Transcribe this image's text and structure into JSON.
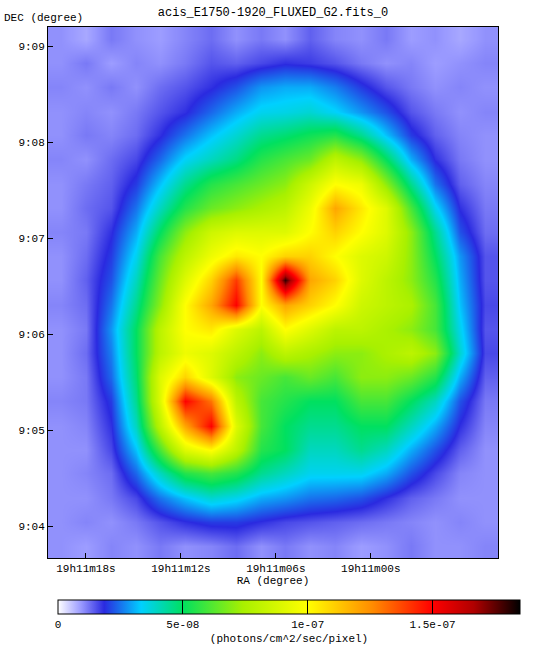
{
  "chart_data": {
    "type": "heatmap",
    "title": "acis_E1750-1920_FLUXED_G2.fits_0",
    "x_label": "RA (degree)",
    "y_label": "DEC (degree)",
    "xlim": [
      287.835,
      287.7165
    ],
    "ylim": [
      9.0612,
      9.1534
    ],
    "xticks": [
      {
        "value": 287.825,
        "label": "19h11m18s"
      },
      {
        "value": 287.8,
        "label": "19h11m12s"
      },
      {
        "value": 287.775,
        "label": "19h11m06s"
      },
      {
        "value": 287.75,
        "label": "19h11m00s"
      }
    ],
    "yticks": [
      {
        "value": 9.066667,
        "label": "9:04"
      },
      {
        "value": 9.083333,
        "label": "9:05"
      },
      {
        "value": 9.1,
        "label": "9:06"
      },
      {
        "value": 9.116667,
        "label": "9:07"
      },
      {
        "value": 9.133333,
        "label": "9:08"
      },
      {
        "value": 9.15,
        "label": "9:09"
      }
    ],
    "x": [
      287.8317,
      287.8251,
      287.8185,
      287.8119,
      287.8054,
      287.7988,
      287.7922,
      287.7856,
      287.779,
      287.7725,
      287.7659,
      287.7593,
      287.7527,
      287.7461,
      287.7395,
      287.733,
      287.7264,
      287.7198
    ],
    "y": [
      9.1513,
      9.1471,
      9.1429,
      9.1387,
      9.1346,
      9.1304,
      9.1262,
      9.122,
      9.1178,
      9.1136,
      9.1094,
      9.1052,
      9.101,
      9.0968,
      9.0926,
      9.0884,
      9.0842,
      9.08,
      9.0759,
      9.0717,
      9.0675,
      9.0633
    ],
    "z": [
      [
        1e-08,
        8e-09,
        1.2e-08,
        1e-08,
        9e-09,
        1.1e-08,
        1.3e-08,
        1e-08,
        1.2e-08,
        1e-08,
        1.4e-08,
        1.1e-08,
        1e-08,
        1.2e-08,
        9e-09,
        1e-08,
        8e-09,
        1e-08
      ],
      [
        1e-08,
        1.2e-08,
        9e-09,
        1.1e-08,
        1e-08,
        1.2e-08,
        1.5e-08,
        1.4e-08,
        1.6e-08,
        1.8e-08,
        1.7e-08,
        1.5e-08,
        1.2e-08,
        1e-08,
        1.1e-08,
        9e-09,
        1e-08,
        1.1e-08
      ],
      [
        1.1e-08,
        1e-08,
        1.2e-08,
        1e-08,
        1.3e-08,
        1.5e-08,
        1.8e-08,
        2.2e-08,
        2.8e-08,
        3e-08,
        3e-08,
        2.6e-08,
        2e-08,
        1.5e-08,
        1.2e-08,
        1e-08,
        1.1e-08,
        1e-08
      ],
      [
        1e-08,
        1.1e-08,
        1e-08,
        1.2e-08,
        1.5e-08,
        1.8e-08,
        2.4e-08,
        3e-08,
        3.5e-08,
        3.6e-08,
        3.8e-08,
        3.4e-08,
        2.8e-08,
        2.2e-08,
        1.5e-08,
        1.2e-08,
        1e-08,
        1.1e-08
      ],
      [
        1e-08,
        1.2e-08,
        1.1e-08,
        1.3e-08,
        1.8e-08,
        2.5e-08,
        3.2e-08,
        3.8e-08,
        4.5e-08,
        4.8e-08,
        5.2e-08,
        5.5e-08,
        4.5e-08,
        3.2e-08,
        2e-08,
        1.4e-08,
        1.1e-08,
        1e-08
      ],
      [
        1.1e-08,
        1e-08,
        1.3e-08,
        1.6e-08,
        2.4e-08,
        3.4e-08,
        4e-08,
        4.6e-08,
        5.5e-08,
        6e-08,
        6.5e-08,
        8e-08,
        7e-08,
        5e-08,
        3e-08,
        1.8e-08,
        1.2e-08,
        1e-08
      ],
      [
        1e-08,
        1.2e-08,
        1.4e-08,
        2e-08,
        3.2e-08,
        4.5e-08,
        5.5e-08,
        6e-08,
        6.5e-08,
        7e-08,
        8.5e-08,
        1e-07,
        9.5e-08,
        7e-08,
        4.5e-08,
        2.5e-08,
        1.4e-08,
        1.1e-08
      ],
      [
        1e-08,
        1.3e-08,
        1.5e-08,
        2.5e-08,
        4e-08,
        5.5e-08,
        6.5e-08,
        7e-08,
        7.5e-08,
        8e-08,
        9.5e-08,
        1.2e-07,
        1.05e-07,
        9e-08,
        6e-08,
        3.5e-08,
        1.8e-08,
        1.2e-08
      ],
      [
        1.1e-08,
        1.2e-08,
        1.8e-08,
        3e-08,
        5e-08,
        7e-08,
        8.5e-08,
        9e-08,
        9e-08,
        9e-08,
        1e-07,
        1.1e-07,
        1e-07,
        9e-08,
        7e-08,
        4.5e-08,
        2.2e-08,
        1.3e-08
      ],
      [
        1e-08,
        1.3e-08,
        2e-08,
        3.5e-08,
        6e-08,
        8e-08,
        9.5e-08,
        1.05e-07,
        1e-07,
        1.1e-07,
        1.1e-07,
        1e-07,
        9e-08,
        8.5e-08,
        7e-08,
        5e-08,
        2.8e-08,
        1.5e-08
      ],
      [
        1e-08,
        1.4e-08,
        2.2e-08,
        4e-08,
        6.5e-08,
        9e-08,
        1.1e-07,
        1.4e-07,
        1e-07,
        1.8e-07,
        1.2e-07,
        1.1e-07,
        9e-08,
        8e-08,
        7e-08,
        5.5e-08,
        3e-08,
        1.5e-08
      ],
      [
        1.1e-08,
        1.3e-08,
        2.5e-08,
        4.5e-08,
        7e-08,
        1e-07,
        1.2e-07,
        1.5e-07,
        1e-07,
        1.2e-07,
        1.1e-07,
        1e-07,
        8.5e-08,
        8e-08,
        7.5e-08,
        6e-08,
        3.2e-08,
        1.6e-08
      ],
      [
        1e-08,
        1.2e-08,
        2.8e-08,
        5e-08,
        8e-08,
        1e-07,
        1.05e-07,
        9e-08,
        8e-08,
        1e-07,
        9e-08,
        8e-08,
        8e-08,
        7.5e-08,
        7e-08,
        6e-08,
        3.5e-08,
        1.5e-08
      ],
      [
        1e-08,
        1.3e-08,
        2.6e-08,
        5e-08,
        8e-08,
        9.5e-08,
        9e-08,
        8e-08,
        7e-08,
        8e-08,
        7.5e-08,
        7e-08,
        7e-08,
        7.5e-08,
        8e-08,
        7e-08,
        3.8e-08,
        1.6e-08
      ],
      [
        1e-08,
        1.2e-08,
        2.4e-08,
        4.8e-08,
        9e-08,
        1.1e-07,
        9e-08,
        7e-08,
        6.5e-08,
        6e-08,
        6.5e-08,
        6e-08,
        7e-08,
        7e-08,
        6.5e-08,
        5.5e-08,
        3e-08,
        1.4e-08
      ],
      [
        1.1e-08,
        1.2e-08,
        2e-08,
        4.5e-08,
        9e-08,
        1.5e-07,
        1.3e-07,
        8e-08,
        6e-08,
        5.5e-08,
        5e-08,
        5e-08,
        6e-08,
        6e-08,
        5e-08,
        4e-08,
        2.2e-08,
        1.2e-08
      ],
      [
        1e-08,
        1.1e-08,
        1.8e-08,
        4e-08,
        8e-08,
        1.2e-07,
        1.5e-07,
        9e-08,
        6e-08,
        5e-08,
        4.5e-08,
        4.5e-08,
        5e-08,
        5e-08,
        4e-08,
        3e-08,
        1.8e-08,
        1.1e-08
      ],
      [
        1e-08,
        1e-08,
        1.6e-08,
        3.2e-08,
        6e-08,
        9e-08,
        1e-07,
        8e-08,
        5.5e-08,
        5e-08,
        4e-08,
        4e-08,
        4.5e-08,
        4e-08,
        3e-08,
        2.2e-08,
        1.4e-08,
        1e-08
      ],
      [
        1e-08,
        1.1e-08,
        1.3e-08,
        2.4e-08,
        4e-08,
        5.5e-08,
        6e-08,
        5.5e-08,
        4.5e-08,
        4e-08,
        3.5e-08,
        3.5e-08,
        3.5e-08,
        3e-08,
        2.2e-08,
        1.6e-08,
        1.1e-08,
        1e-08
      ],
      [
        1e-08,
        1e-08,
        1.2e-08,
        1.6e-08,
        2.5e-08,
        3.2e-08,
        3.8e-08,
        3.5e-08,
        3e-08,
        2.8e-08,
        2.5e-08,
        2.4e-08,
        2.2e-08,
        1.8e-08,
        1.4e-08,
        1.2e-08,
        1e-08,
        1e-08
      ],
      [
        1e-08,
        1.1e-08,
        1e-08,
        1.2e-08,
        1.5e-08,
        1.8e-08,
        2e-08,
        2e-08,
        1.8e-08,
        1.6e-08,
        1.5e-08,
        1.4e-08,
        1.3e-08,
        1.2e-08,
        1.1e-08,
        1e-08,
        1.1e-08,
        1e-08
      ],
      [
        1e-08,
        9e-09,
        1.1e-08,
        1e-08,
        1.2e-08,
        1e-08,
        1.1e-08,
        1.3e-08,
        1e-08,
        1.2e-08,
        1e-08,
        1.1e-08,
        9e-09,
        1e-08,
        1.2e-08,
        1e-08,
        1e-08,
        1.1e-08
      ]
    ],
    "colorbar": {
      "title": "(photons/cm^2/sec/pixel)",
      "range": [
        0,
        1.85e-07
      ],
      "ticks": [
        {
          "value": 0,
          "label": "0"
        },
        {
          "value": 5e-08,
          "label": "5e-08"
        },
        {
          "value": 1e-07,
          "label": "1e-07"
        },
        {
          "value": 1.5e-07,
          "label": "1.5e-07"
        }
      ]
    }
  }
}
